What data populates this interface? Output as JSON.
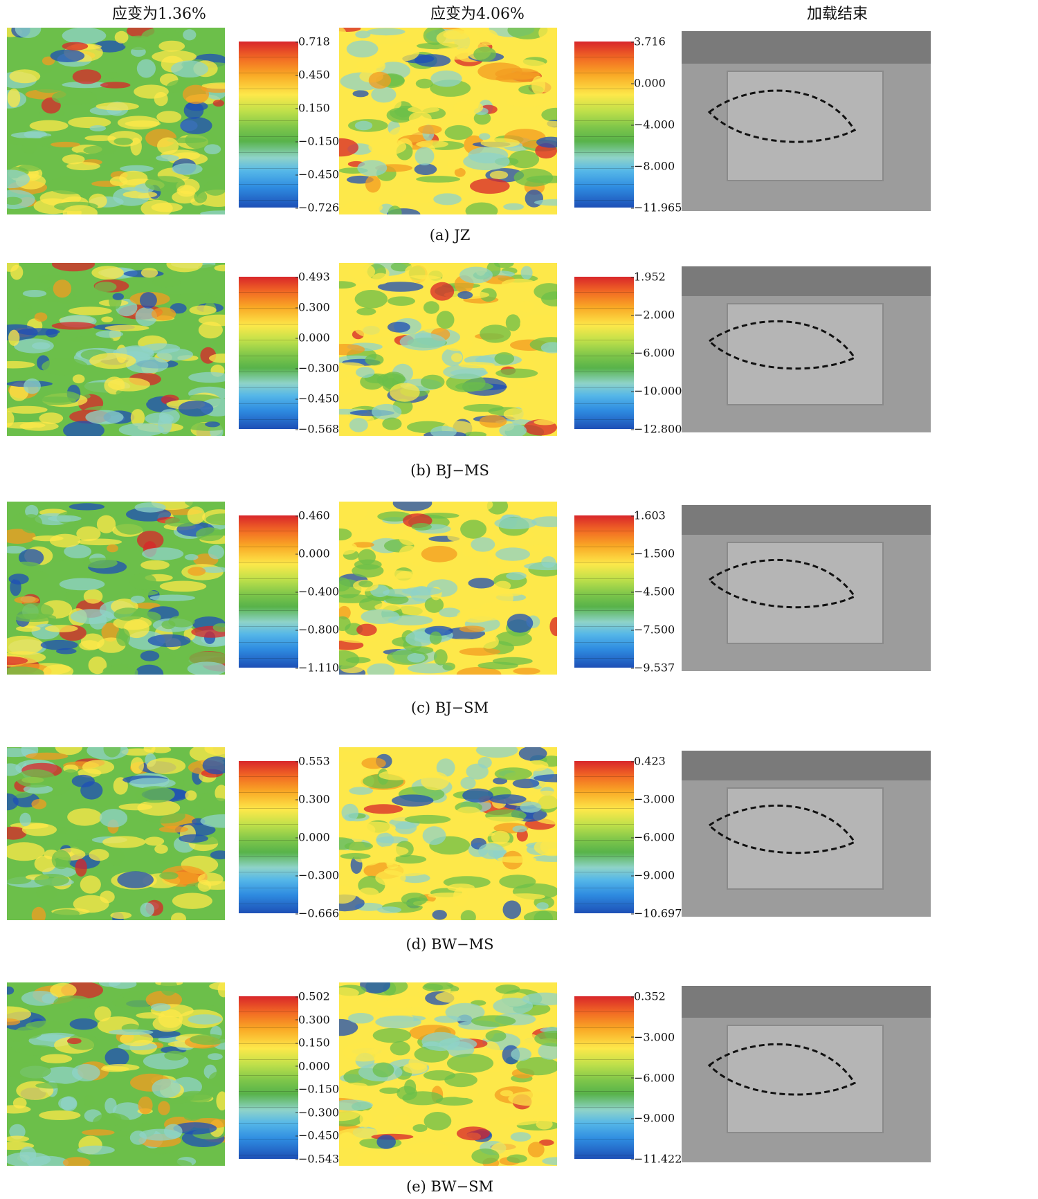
{
  "column_headers": [
    "应变为1.36%",
    "应变为4.06%",
    "加载结束"
  ],
  "rows": [
    {
      "caption": "(a) JZ",
      "bar1": [
        "0.718",
        "0.450",
        "0.150",
        "−0.150",
        "−0.450",
        "−0.726"
      ],
      "bar2": [
        "3.716",
        "0.000",
        "−4.000",
        "−8.000",
        "−11.965"
      ]
    },
    {
      "caption": "(b) BJ−MS",
      "bar1": [
        "0.493",
        "0.300",
        "0.000",
        "−0.300",
        "−0.450",
        "−0.568"
      ],
      "bar2": [
        "1.952",
        "−2.000",
        "−6.000",
        "−10.000",
        "−12.800"
      ]
    },
    {
      "caption": "(c) BJ−SM",
      "bar1": [
        "0.460",
        "0.000",
        "−0.400",
        "−0.800",
        "−1.110"
      ],
      "bar2": [
        "1.603",
        "−1.500",
        "−4.500",
        "−7.500",
        "−9.537"
      ]
    },
    {
      "caption": "(d) BW−MS",
      "bar1": [
        "0.553",
        "0.300",
        "0.000",
        "−0.300",
        "−0.666"
      ],
      "bar2": [
        "0.423",
        "−3.000",
        "−6.000",
        "−9.000",
        "−10.697"
      ]
    },
    {
      "caption": "(e) BW−SM",
      "bar1": [
        "0.502",
        "0.300",
        "0.150",
        "0.000",
        "−0.150",
        "−0.300",
        "−0.450",
        "−0.543"
      ],
      "bar2": [
        "0.352",
        "−3.000",
        "−6.000",
        "−9.000",
        "−11.422"
      ]
    }
  ],
  "colors": {
    "red": "#d8262a",
    "orange": "#f39c22",
    "yellow": "#fde84a",
    "green": "#6cbf4a",
    "cyan": "#8fd3c8",
    "blue": "#1d4fb6",
    "photo_gray": "#9c9c9c"
  }
}
